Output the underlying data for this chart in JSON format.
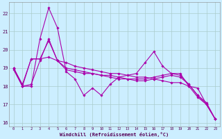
{
  "xlabel": "Windchill (Refroidissement éolien,°C)",
  "background_color": "#cceeff",
  "grid_color": "#aacccc",
  "line_color": "#aa00aa",
  "x_values": [
    0,
    1,
    2,
    3,
    4,
    5,
    6,
    7,
    8,
    9,
    10,
    11,
    12,
    13,
    14,
    15,
    16,
    17,
    18,
    19,
    20,
    21,
    22,
    23
  ],
  "series1": [
    18.9,
    18.0,
    18.0,
    20.6,
    22.3,
    21.2,
    18.8,
    18.4,
    17.5,
    17.9,
    17.5,
    18.1,
    18.5,
    18.6,
    18.7,
    19.3,
    19.9,
    19.1,
    18.7,
    18.7,
    18.0,
    17.4,
    17.0,
    16.2
  ],
  "series2": [
    19.0,
    18.0,
    19.5,
    19.5,
    20.5,
    19.4,
    19.0,
    18.9,
    18.8,
    18.7,
    18.6,
    18.6,
    18.5,
    18.4,
    18.4,
    18.4,
    18.5,
    18.6,
    18.7,
    18.6,
    18.1,
    17.5,
    17.1,
    16.2
  ],
  "series3": [
    19.0,
    18.0,
    18.1,
    19.4,
    20.6,
    19.4,
    18.9,
    18.8,
    18.7,
    18.7,
    18.6,
    18.5,
    18.4,
    18.4,
    18.3,
    18.3,
    18.4,
    18.5,
    18.6,
    18.5,
    18.1,
    17.5,
    17.0,
    16.2
  ],
  "series4": [
    19.0,
    18.1,
    19.5,
    19.5,
    19.6,
    19.4,
    19.3,
    19.1,
    19.0,
    18.9,
    18.8,
    18.7,
    18.7,
    18.6,
    18.5,
    18.5,
    18.4,
    18.3,
    18.2,
    18.2,
    18.0,
    17.9,
    17.0,
    16.2
  ],
  "ylim": [
    15.8,
    22.6
  ],
  "yticks": [
    16,
    17,
    18,
    19,
    20,
    21,
    22
  ],
  "xlim": [
    -0.5,
    23.5
  ]
}
